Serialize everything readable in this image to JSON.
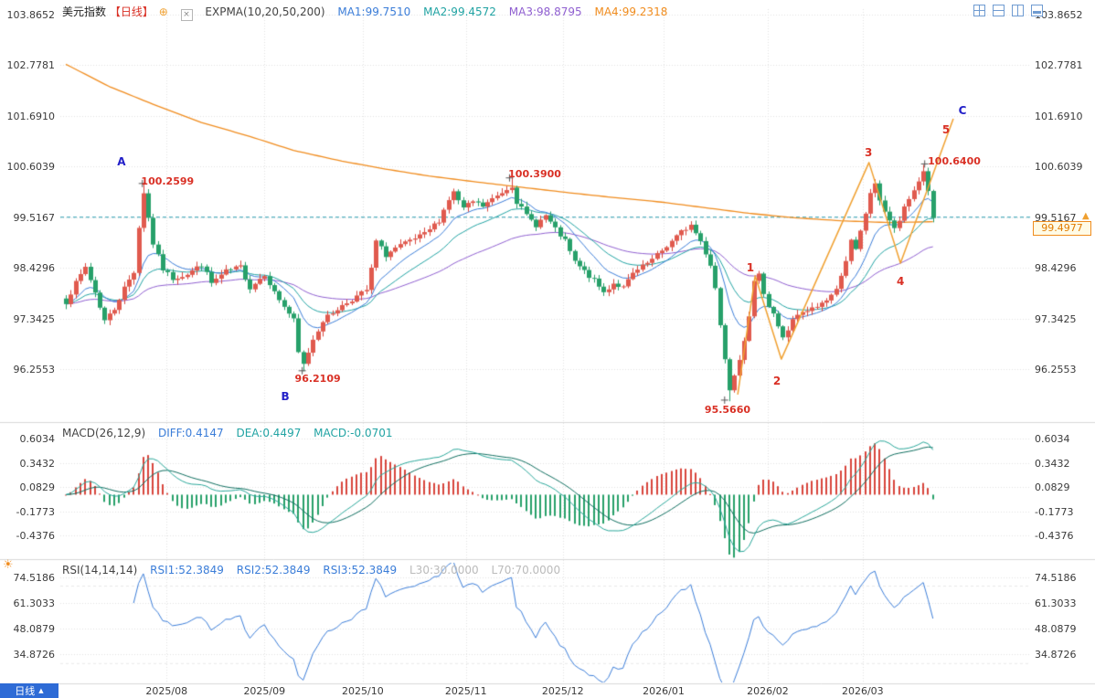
{
  "colors": {
    "up": "#d8453c",
    "up_fill": "#e05a4e",
    "down": "#27a06a",
    "ma1": "#3b7dd8",
    "ma2": "#21a3a3",
    "ma3": "#8f5fd0",
    "ma4": "#f08c1e",
    "macd_diff_line": "#2aa79a",
    "macd_dea_line": "#0f6e5f",
    "legend_diff": "#3b7dd8",
    "legend_dea": "#21a3a3",
    "legend_macd": "#21a3a3",
    "rsi_line": "#3b7dd8",
    "legend_rsi": "#3b7dd8",
    "legend_levels": "#bbbbbb",
    "grid": "#e3e3e3",
    "separator": "#d8d8d8",
    "dashed_level": "#2a9db0",
    "annotation_red": "#d93025",
    "annotation_blue": "#2320c8",
    "drawing_orange": "#f0a030",
    "axis_text": "#3a3a3a",
    "indicator_text": "#444444",
    "symbol_text": "#222222",
    "period_red": "#d93025",
    "price_box_border": "#f08c1e",
    "price_box_text": "#e07b00",
    "button_blue": "#2e6bd6",
    "icon_blue": "#6f9bd1",
    "settings_orange": "#f08c1e",
    "marker_gray": "#555555"
  },
  "icons": {
    "add": "⊕",
    "remove": "×",
    "settings": "☀",
    "arrow_up": "▲"
  },
  "header": {
    "symbol": "美元指数",
    "period": "【日线】",
    "indicator": "EXPMA(10,20,50,200)",
    "ma1": "MA1:99.7510",
    "ma2": "MA2:99.4572",
    "ma3": "MA3:98.8795",
    "ma4": "MA4:99.2318"
  },
  "main_panel": {
    "current_price": "99.4977",
    "axis_labels": [
      "103.8652",
      "102.7781",
      "101.6910",
      "100.6039",
      "99.5167",
      "98.4296",
      "97.3425",
      "96.2553"
    ]
  },
  "macd_panel": {
    "name": "MACD(26,12,9)",
    "diff": "DIFF:0.4147",
    "dea": "DEA:0.4497",
    "macd": "MACD:-0.0701",
    "axis_labels": [
      "0.6034",
      "0.3432",
      "0.0829",
      "-0.1773",
      "-0.4376"
    ]
  },
  "rsi_panel": {
    "name": "RSI(14,14,14)",
    "rsi1": "RSI1:52.3849",
    "rsi2": "RSI2:52.3849",
    "rsi3": "RSI3:52.3849",
    "l30": "L30:30.0000",
    "l70": "L70:70.0000",
    "axis_labels": [
      "74.5186",
      "61.3033",
      "48.0879",
      "34.8726"
    ]
  },
  "period_button": {
    "label": "日线",
    "arrow": "▲"
  },
  "annotations": {
    "letters": [
      {
        "text": "A",
        "i": 11.5,
        "price": 100.71
      },
      {
        "text": "B",
        "i": 45.3,
        "price": 95.67
      },
      {
        "text": "C",
        "i": 185.1,
        "price": 101.81
      }
    ],
    "numbers": [
      {
        "text": "1",
        "i": 141.3,
        "price": 98.43
      },
      {
        "text": "2",
        "i": 146.8,
        "price": 96.0
      },
      {
        "text": "3",
        "i": 165.7,
        "price": 100.9
      },
      {
        "text": "4",
        "i": 172.3,
        "price": 98.14
      },
      {
        "text": "5",
        "i": 181.7,
        "price": 101.39
      }
    ],
    "price_callouts": [
      {
        "text": "100.2599",
        "i": 21.0,
        "price": 100.3,
        "marker_i": 15.8,
        "marker_price": 100.24
      },
      {
        "text": "100.3900",
        "i": 96.8,
        "price": 100.46,
        "marker_i": 91.6,
        "marker_price": 100.36
      },
      {
        "text": "96.2109",
        "i": 52.0,
        "price": 96.06,
        "marker_i": 48.8,
        "marker_price": 96.22
      },
      {
        "text": "95.5660",
        "i": 136.6,
        "price": 95.4,
        "marker_i": 136.0,
        "marker_price": 95.59
      },
      {
        "text": "100.6400",
        "i": 183.4,
        "price": 100.73,
        "marker_i": 177.3,
        "marker_price": 100.66
      }
    ],
    "drawing_points": [
      [
        138.7,
        95.71
      ],
      [
        142.3,
        98.26
      ],
      [
        147.7,
        96.47
      ],
      [
        165.8,
        100.69
      ],
      [
        172.3,
        98.53
      ],
      [
        183.2,
        101.63
      ]
    ]
  },
  "chart_data": {
    "type": "candlestick",
    "symbol": "美元指数",
    "period": "日线",
    "candle_count": 180,
    "price_axis_values": [
      103.8652,
      102.7781,
      101.691,
      100.6039,
      99.5167,
      98.4296,
      97.3425,
      96.2553
    ],
    "macd_axis_values": [
      0.6034,
      0.3432,
      0.0829,
      -0.1773,
      -0.4376
    ],
    "rsi_axis_values": [
      74.5186,
      61.3033,
      48.0879,
      34.8726
    ],
    "months": [
      {
        "label": "2025/08",
        "i": 20.8
      },
      {
        "label": "2025/09",
        "i": 41.0
      },
      {
        "label": "2025/10",
        "i": 61.3
      },
      {
        "label": "2025/11",
        "i": 82.6
      },
      {
        "label": "2025/12",
        "i": 102.6
      },
      {
        "label": "2026/01",
        "i": 123.4
      },
      {
        "label": "2026/02",
        "i": 144.9
      },
      {
        "label": "2026/03",
        "i": 164.5
      }
    ],
    "close_anchors": [
      [
        0,
        97.7
      ],
      [
        2,
        98.1
      ],
      [
        4,
        98.45
      ],
      [
        6,
        97.9
      ],
      [
        8,
        97.3
      ],
      [
        10,
        97.55
      ],
      [
        12,
        98.0
      ],
      [
        14,
        98.35
      ],
      [
        15,
        99.3
      ],
      [
        16,
        100.05
      ],
      [
        17,
        99.5
      ],
      [
        18,
        98.95
      ],
      [
        20,
        98.4
      ],
      [
        22,
        98.2
      ],
      [
        25,
        98.3
      ],
      [
        28,
        98.5
      ],
      [
        30,
        98.1
      ],
      [
        33,
        98.35
      ],
      [
        36,
        98.45
      ],
      [
        38,
        98.0
      ],
      [
        41,
        98.3
      ],
      [
        43,
        97.9
      ],
      [
        45,
        97.6
      ],
      [
        47,
        97.3
      ],
      [
        48,
        96.6
      ],
      [
        49,
        96.35
      ],
      [
        51,
        96.9
      ],
      [
        53,
        97.3
      ],
      [
        56,
        97.55
      ],
      [
        59,
        97.75
      ],
      [
        62,
        97.95
      ],
      [
        63,
        98.4
      ],
      [
        64,
        99.0
      ],
      [
        66,
        98.7
      ],
      [
        68,
        98.85
      ],
      [
        71,
        99.0
      ],
      [
        74,
        99.15
      ],
      [
        77,
        99.45
      ],
      [
        79,
        99.9
      ],
      [
        80,
        100.05
      ],
      [
        82,
        99.7
      ],
      [
        84,
        99.85
      ],
      [
        86,
        99.75
      ],
      [
        88,
        99.9
      ],
      [
        90,
        100.05
      ],
      [
        92,
        100.2
      ],
      [
        93,
        99.85
      ],
      [
        95,
        99.55
      ],
      [
        97,
        99.35
      ],
      [
        99,
        99.55
      ],
      [
        101,
        99.25
      ],
      [
        103,
        99.0
      ],
      [
        105,
        98.55
      ],
      [
        107,
        98.35
      ],
      [
        109,
        98.15
      ],
      [
        111,
        97.9
      ],
      [
        113,
        98.1
      ],
      [
        115,
        98.0
      ],
      [
        117,
        98.3
      ],
      [
        119,
        98.45
      ],
      [
        121,
        98.6
      ],
      [
        123,
        98.8
      ],
      [
        125,
        99.0
      ],
      [
        127,
        99.2
      ],
      [
        129,
        99.35
      ],
      [
        131,
        99.0
      ],
      [
        133,
        98.5
      ],
      [
        134,
        98.0
      ],
      [
        135,
        97.2
      ],
      [
        136,
        96.5
      ],
      [
        137,
        95.85
      ],
      [
        138,
        96.15
      ],
      [
        139,
        96.5
      ],
      [
        140,
        96.9
      ],
      [
        141,
        97.35
      ],
      [
        142,
        98.1
      ],
      [
        143,
        98.35
      ],
      [
        144,
        97.9
      ],
      [
        145,
        97.6
      ],
      [
        146,
        97.45
      ],
      [
        147,
        97.15
      ],
      [
        148,
        96.95
      ],
      [
        149,
        97.1
      ],
      [
        150,
        97.3
      ],
      [
        151,
        97.4
      ],
      [
        153,
        97.5
      ],
      [
        155,
        97.6
      ],
      [
        157,
        97.75
      ],
      [
        159,
        97.95
      ],
      [
        160,
        98.3
      ],
      [
        161,
        98.6
      ],
      [
        162,
        99.0
      ],
      [
        163,
        98.8
      ],
      [
        164,
        99.2
      ],
      [
        165,
        99.6
      ],
      [
        166,
        100.05
      ],
      [
        167,
        100.2
      ],
      [
        168,
        99.9
      ],
      [
        169,
        99.65
      ],
      [
        170,
        99.45
      ],
      [
        171,
        99.25
      ],
      [
        172,
        99.45
      ],
      [
        173,
        99.7
      ],
      [
        174,
        99.9
      ],
      [
        175,
        100.1
      ],
      [
        176,
        100.3
      ],
      [
        177,
        100.5
      ],
      [
        178,
        100.1
      ],
      [
        179,
        99.4977
      ]
    ],
    "ema200_anchors": [
      [
        0,
        102.8
      ],
      [
        9,
        102.32
      ],
      [
        19,
        101.9
      ],
      [
        28,
        101.55
      ],
      [
        38,
        101.25
      ],
      [
        47,
        100.95
      ],
      [
        57,
        100.72
      ],
      [
        66,
        100.55
      ],
      [
        75,
        100.4
      ],
      [
        85,
        100.27
      ],
      [
        94,
        100.16
      ],
      [
        104,
        100.04
      ],
      [
        113,
        99.94
      ],
      [
        123,
        99.84
      ],
      [
        132,
        99.72
      ],
      [
        141,
        99.6
      ],
      [
        151,
        99.5
      ],
      [
        160,
        99.44
      ],
      [
        170,
        99.4
      ],
      [
        179,
        99.42
      ]
    ],
    "key_points": [
      {
        "i": 16,
        "high": 100.2599
      },
      {
        "i": 92,
        "high": 100.39
      },
      {
        "i": 49,
        "low": 96.2109
      },
      {
        "i": 137,
        "low": 95.566
      },
      {
        "i": 177,
        "high": 100.64
      }
    ],
    "key_levels": {
      "dashed_line": 99.5167,
      "current_price": 99.4977,
      "rsi_low": 30.0,
      "rsi_high": 70.0
    },
    "indicator_values": {
      "ema10": 99.751,
      "ema20": 99.4572,
      "ema50": 98.8795,
      "ema200": 99.2318,
      "diff": 0.4147,
      "dea": 0.4497,
      "macd": -0.0701,
      "rsi1": 52.3849,
      "rsi2": 52.3849,
      "rsi3": 52.3849
    }
  }
}
